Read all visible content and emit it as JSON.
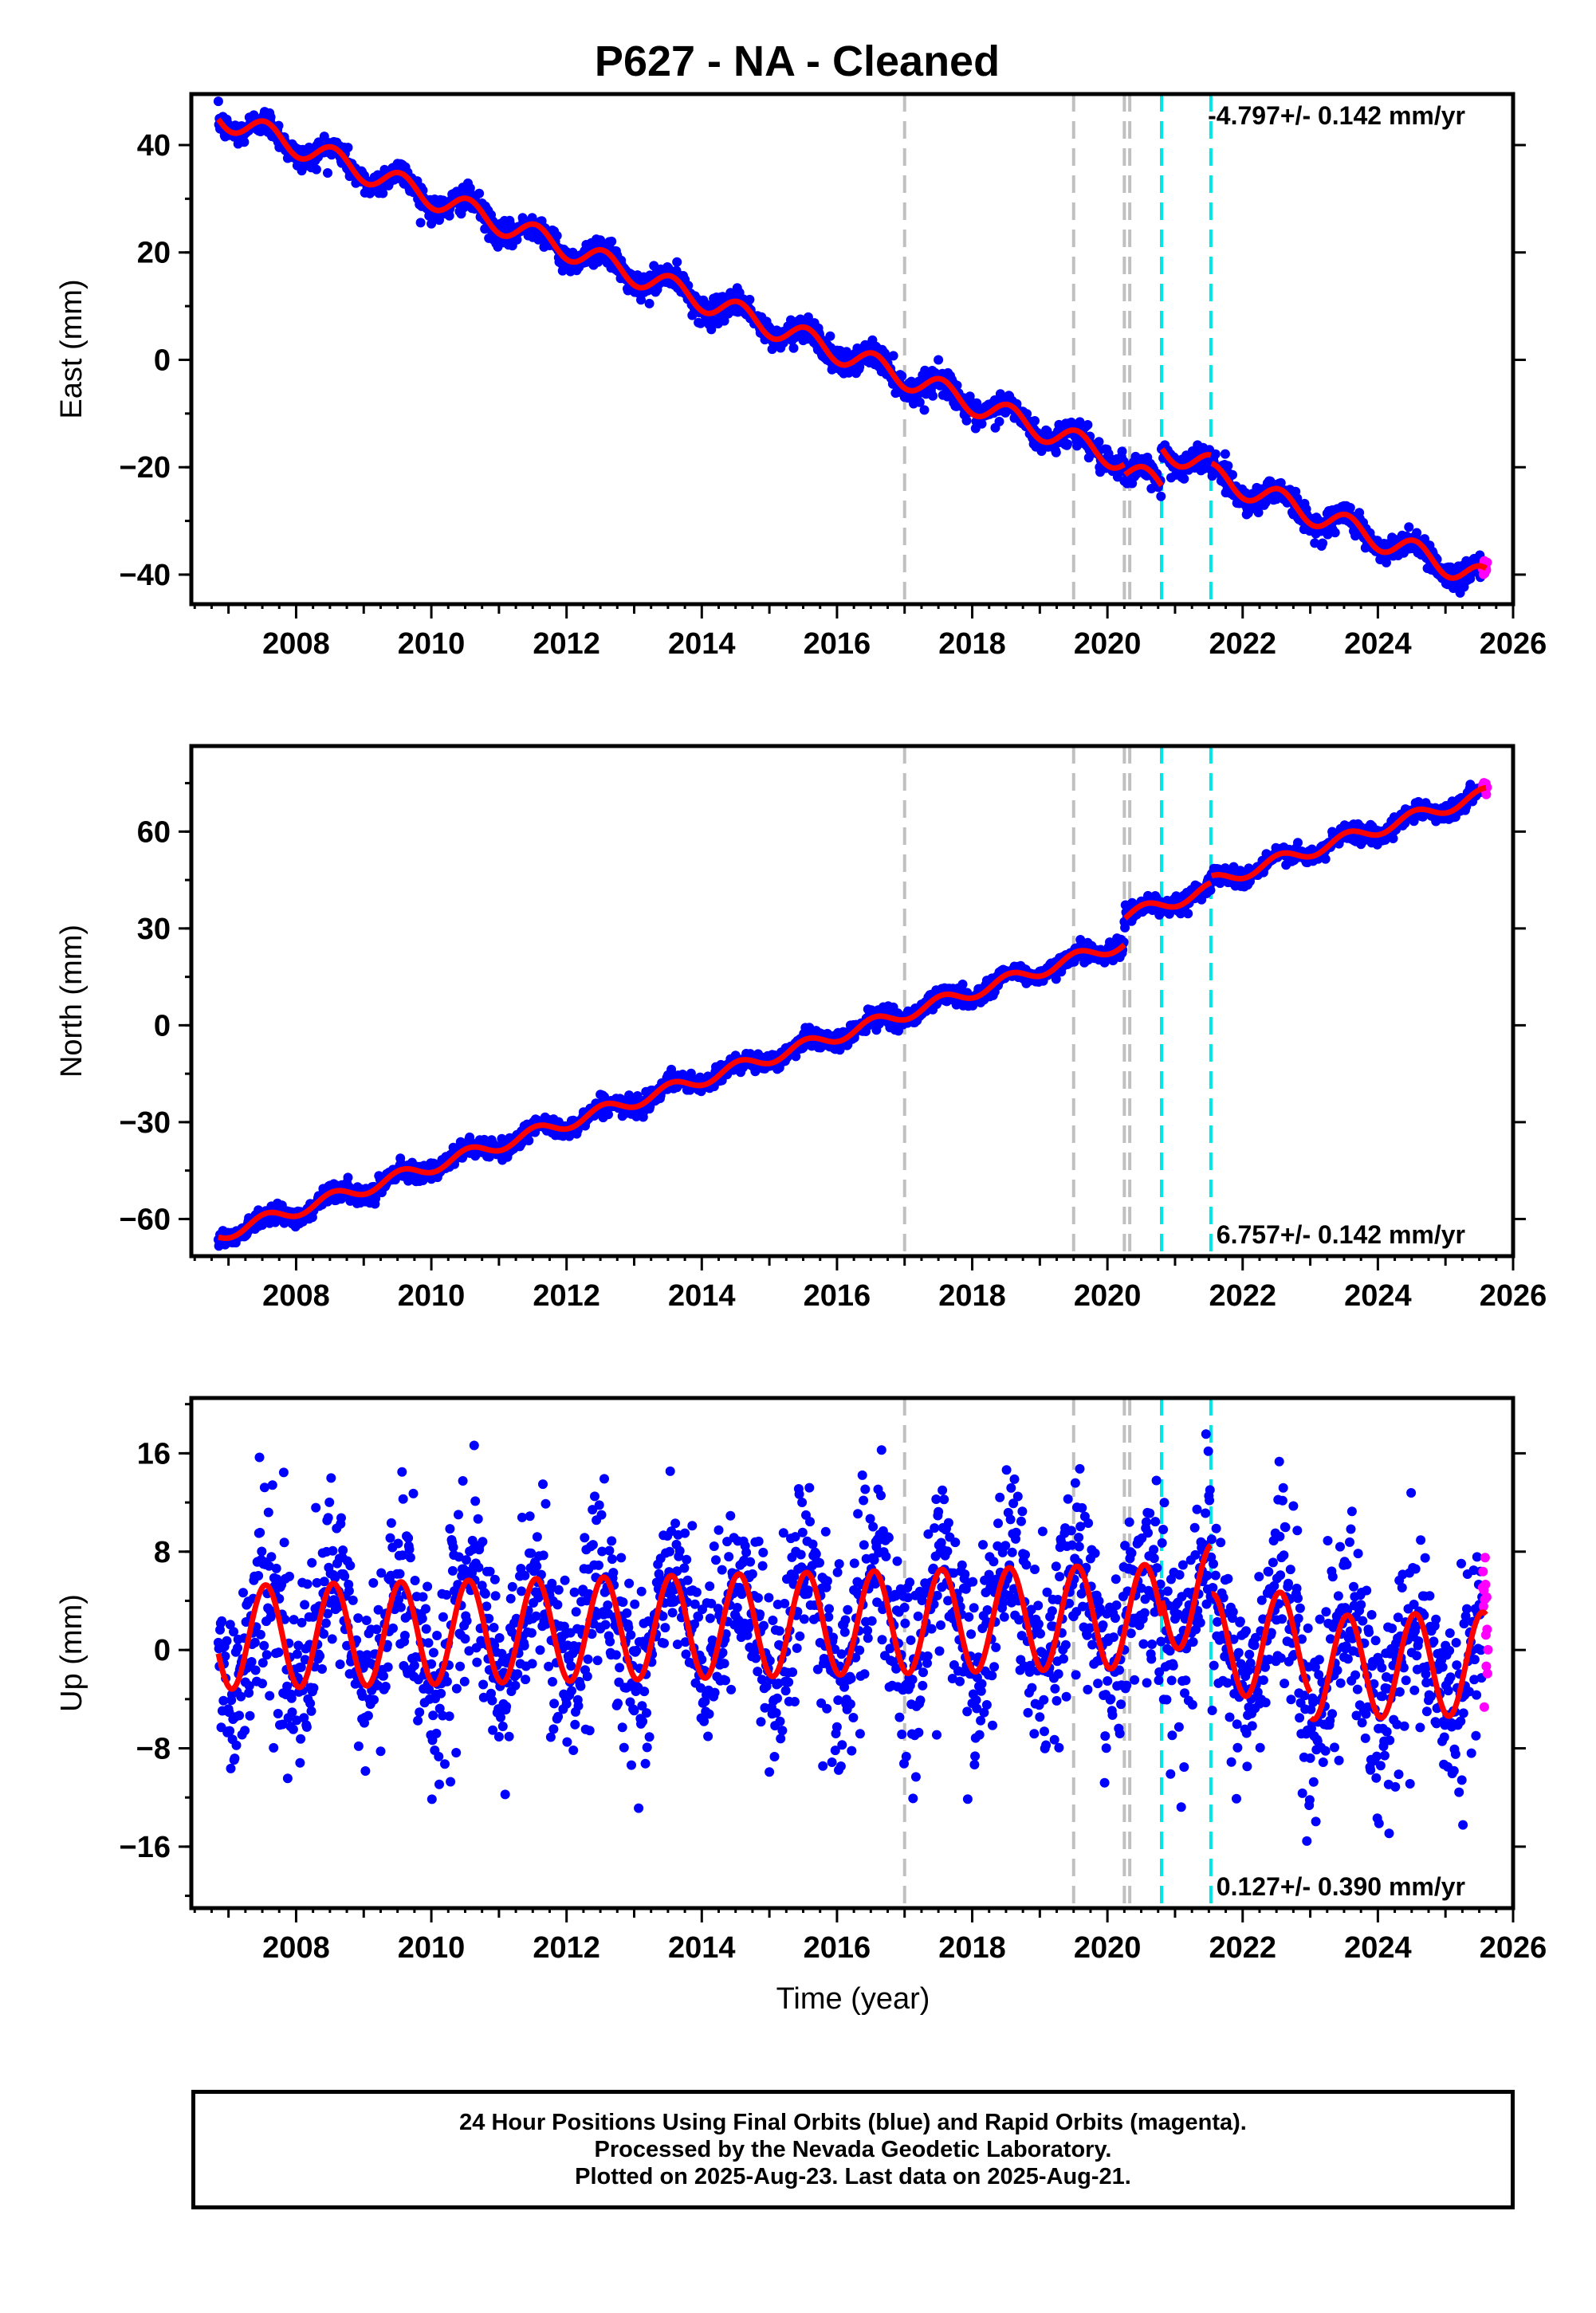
{
  "title": "P627  - NA - Cleaned",
  "xlabel": "Time (year)",
  "footer": [
    "24 Hour Positions Using Final Orbits (blue) and Rapid Orbits (magenta).",
    "Processed by the Nevada Geodetic Laboratory.",
    "Plotted on 2025-Aug-23. Last data on 2025-Aug-21."
  ],
  "colors": {
    "final_orbits": "#0000ff",
    "rapid_orbits": "#ff00ff",
    "model": "#ff0000",
    "event_gray": "#c0c0c0",
    "event_cyan": "#00e5e5"
  },
  "events": {
    "gray": [
      2017.0,
      2019.5,
      2020.25,
      2020.33
    ],
    "cyan": [
      2020.8,
      2021.53
    ]
  },
  "chart_data": [
    {
      "type": "scatter",
      "component": "east",
      "ylabel": "East (mm)",
      "rate_label": "-4.797+/- 0.142 mm/yr",
      "rate_position": "top-right",
      "x_range": [
        2006.45,
        2026.0
      ],
      "ylim": [
        -45.5,
        49.5
      ],
      "xticks": [
        "2008",
        "2010",
        "2012",
        "2014",
        "2016",
        "2018",
        "2020",
        "2022",
        "2024",
        "2026"
      ],
      "yticks": [
        "40",
        "20",
        "0",
        "−20",
        "−40"
      ],
      "model": {
        "start_year": 2006.85,
        "end_year": 2025.6,
        "intercept": 45.5,
        "rate": -4.797,
        "seasonal_amplitude": 2.2,
        "offsets": [
          {
            "year": 2020.25,
            "value": -2.0
          },
          {
            "year": 2020.8,
            "value": 7.0
          },
          {
            "year": 2021.53,
            "value": -1.5
          }
        ]
      },
      "scatter_noise_mm": 1.2,
      "rapid_orbit_points": 12,
      "grid": false
    },
    {
      "type": "scatter",
      "component": "north",
      "ylabel": "North (mm)",
      "rate_label": "6.757+/- 0.142 mm/yr",
      "rate_position": "bottom-right",
      "x_range": [
        2006.45,
        2026.0
      ],
      "ylim": [
        -71.5,
        86.5
      ],
      "xticks": [
        "2008",
        "2010",
        "2012",
        "2014",
        "2016",
        "2018",
        "2020",
        "2022",
        "2024",
        "2026"
      ],
      "yticks": [
        "60",
        "30",
        "0",
        "−30",
        "−60"
      ],
      "model": {
        "start_year": 2006.85,
        "end_year": 2025.6,
        "intercept": -65.0,
        "rate": 6.757,
        "seasonal_amplitude": 2.0,
        "offsets": [
          {
            "year": 2020.25,
            "value": 8.0
          },
          {
            "year": 2021.53,
            "value": 2.0
          }
        ]
      },
      "scatter_noise_mm": 1.4,
      "rapid_orbit_points": 12,
      "grid": false
    },
    {
      "type": "scatter",
      "component": "up",
      "ylabel": "Up (mm)",
      "rate_label": "0.127+/- 0.390 mm/yr",
      "rate_position": "bottom-right",
      "x_range": [
        2006.45,
        2026.0
      ],
      "ylim": [
        -21.0,
        20.5
      ],
      "xticks": [
        "2008",
        "2010",
        "2012",
        "2014",
        "2016",
        "2018",
        "2020",
        "2022",
        "2024",
        "2026"
      ],
      "yticks": [
        "16",
        "8",
        "0",
        "−8",
        "−16"
      ],
      "model": {
        "start_year": 2006.85,
        "end_year": 2025.6,
        "intercept": 1.0,
        "rate": 0.127,
        "seasonal_amplitude": 4.2,
        "offsets": [
          {
            "year": 2020.8,
            "value": 1.5
          },
          {
            "year": 2021.53,
            "value": -4.0
          },
          {
            "year": 2023.0,
            "value": -2.0
          }
        ]
      },
      "scatter_noise_mm": 3.8,
      "rapid_orbit_points": 14,
      "grid": false
    }
  ]
}
